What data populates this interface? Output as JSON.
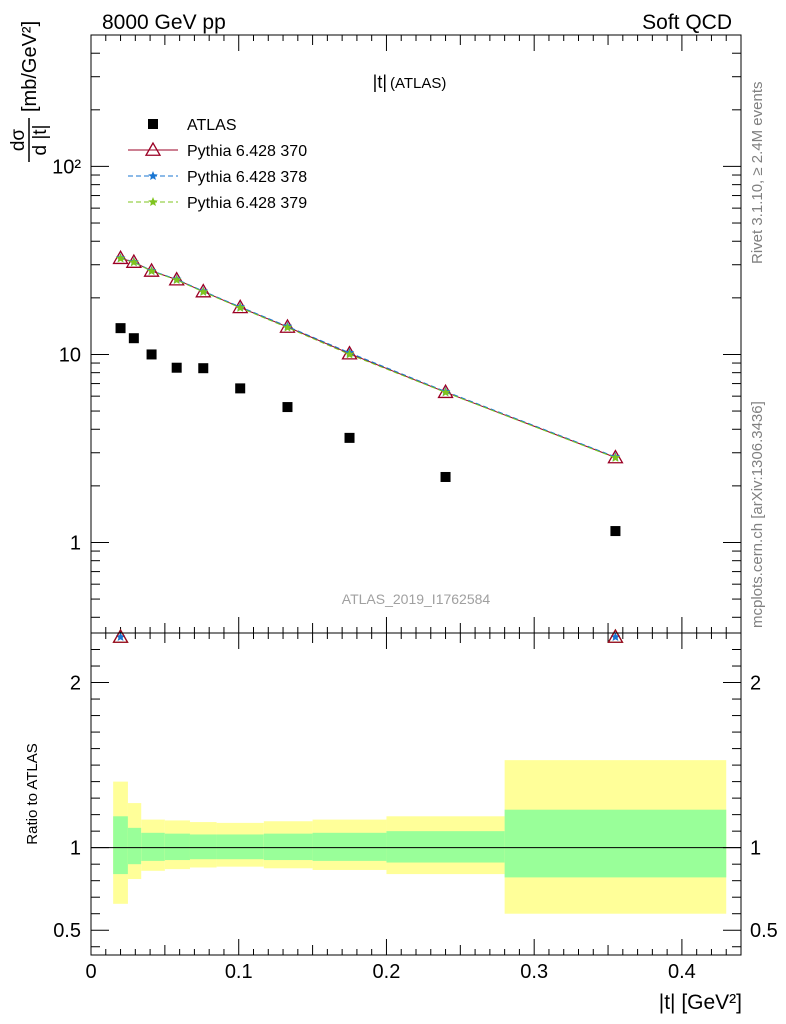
{
  "header": {
    "left": "8000 GeV pp",
    "right": "Soft QCD"
  },
  "side": {
    "rivet": "Rivet 3.1.10, ≥ 2.4M events",
    "mcplots": "mcplots.cern.ch [arXiv:1306.3436]"
  },
  "watermark": "ATLAS_2019_I1762584",
  "chart_data": [
    {
      "type": "scatter",
      "title": "|t| (ATLAS)",
      "title_main": "|t|",
      "title_sub": "(ATLAS)",
      "xlabel": "|t| [GeV²]",
      "ylabel": "dσ/d|t| [mb/GeV²]",
      "ylabel_num": "dσ",
      "ylabel_den": "d |t|",
      "ylabel_unit": "[mb/GeV²]",
      "yscale": "log",
      "xlim": [
        0,
        0.44
      ],
      "ylim": [
        0.33,
        500
      ],
      "y_ticks": [
        {
          "v": 1,
          "label": "1"
        },
        {
          "v": 10,
          "label": "10"
        },
        {
          "v": 100,
          "label": "10²"
        }
      ],
      "legend_position": "top-left",
      "series": [
        {
          "name": "ATLAS",
          "marker": "square",
          "color": "#000000",
          "x": [
            0.02,
            0.029,
            0.041,
            0.058,
            0.076,
            0.101,
            0.133,
            0.175,
            0.24,
            0.355
          ],
          "y": [
            13.8,
            12.2,
            10.0,
            8.5,
            8.45,
            6.6,
            5.25,
            3.6,
            2.23,
            1.15
          ]
        },
        {
          "name": "Pythia 6.428 370",
          "marker": "triangle",
          "line": "solid",
          "color": "#9b0024",
          "x": [
            0.02,
            0.029,
            0.041,
            0.058,
            0.076,
            0.101,
            0.133,
            0.175,
            0.24,
            0.355
          ],
          "y": [
            32.5,
            31.0,
            27.8,
            25.0,
            21.6,
            17.8,
            14.0,
            10.1,
            6.3,
            2.83
          ]
        },
        {
          "name": "Pythia 6.428 378",
          "marker": "star",
          "line": "dashed",
          "color": "#1a76d2",
          "x": [
            0.02,
            0.029,
            0.041,
            0.058,
            0.076,
            0.101,
            0.133,
            0.175,
            0.24,
            0.355
          ],
          "y": [
            32.6,
            31.1,
            27.9,
            25.1,
            21.7,
            17.9,
            14.1,
            10.2,
            6.35,
            2.85
          ]
        },
        {
          "name": "Pythia 6.428 379",
          "marker": "star",
          "line": "dashed",
          "color": "#7fc41f",
          "x": [
            0.02,
            0.029,
            0.041,
            0.058,
            0.076,
            0.101,
            0.133,
            0.175,
            0.24,
            0.355
          ],
          "y": [
            32.4,
            30.9,
            27.7,
            24.9,
            21.5,
            17.7,
            13.9,
            10.0,
            6.28,
            2.82
          ]
        }
      ]
    },
    {
      "type": "line",
      "title": "",
      "xlabel": "|t| [GeV²]",
      "ylabel": "Ratio to ATLAS",
      "xlim": [
        0,
        0.44
      ],
      "ylim": [
        0.35,
        2.3
      ],
      "x_ticks": [
        {
          "v": 0,
          "label": "0"
        },
        {
          "v": 0.1,
          "label": "0.1"
        },
        {
          "v": 0.2,
          "label": "0.2"
        },
        {
          "v": 0.3,
          "label": "0.3"
        },
        {
          "v": 0.4,
          "label": "0.4"
        }
      ],
      "y_ticks": [
        {
          "v": 0.5,
          "label": "0.5"
        },
        {
          "v": 1,
          "label": "1"
        },
        {
          "v": 2,
          "label": "2"
        }
      ],
      "uncertainty_bands": {
        "edges": [
          0.015,
          0.025,
          0.034,
          0.05,
          0.067,
          0.085,
          0.117,
          0.15,
          0.2,
          0.28,
          0.43
        ],
        "stat_lo": [
          0.84,
          0.9,
          0.92,
          0.925,
          0.93,
          0.93,
          0.925,
          0.92,
          0.91,
          0.82
        ],
        "stat_hi": [
          1.19,
          1.12,
          1.09,
          1.085,
          1.08,
          1.08,
          1.085,
          1.09,
          1.1,
          1.23
        ],
        "syst_lo": [
          0.66,
          0.81,
          0.86,
          0.87,
          0.88,
          0.885,
          0.875,
          0.865,
          0.84,
          0.6
        ],
        "syst_hi": [
          1.4,
          1.27,
          1.17,
          1.165,
          1.155,
          1.15,
          1.16,
          1.17,
          1.19,
          1.53
        ],
        "stat_color": "#99ff99",
        "syst_color": "#ffff99"
      },
      "series": [
        {
          "name": "Pythia 6.428 370 / ATLAS",
          "color": "#9b0024",
          "x": [
            0.02,
            0.355
          ],
          "y": [
            2.3,
            2.3
          ]
        }
      ]
    }
  ]
}
